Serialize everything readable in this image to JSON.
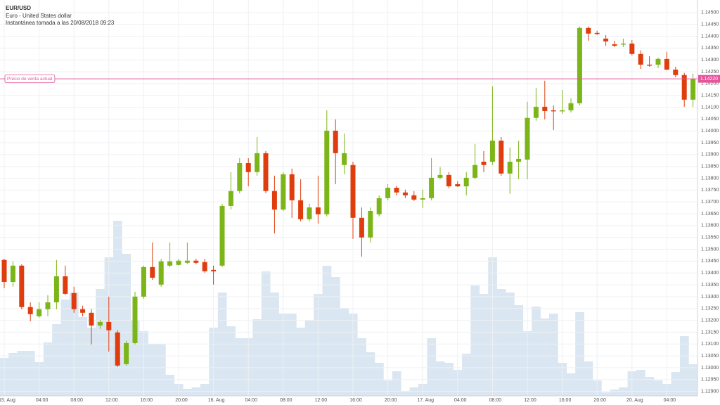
{
  "chart_data": {
    "type": "candlestick",
    "title": "EUR/USD",
    "subtitle": "Euro - United States dollar",
    "snapshot": "Instantánea tomada a las 20/08/2018 09:23",
    "annotation": "Precio de venta actual",
    "current_price": {
      "value": 1.1422,
      "label": "1.14220"
    },
    "up_color": "#7cb518",
    "down_color": "#df3d0e",
    "volume_color": "#dae6f1",
    "price_line_color": "#e4559c",
    "grid": true,
    "categories": [
      "15. Aug",
      null,
      null,
      null,
      "04:00",
      null,
      null,
      null,
      "08:00",
      null,
      null,
      null,
      "12:00",
      null,
      null,
      null,
      "16:00",
      null,
      null,
      null,
      "20:00",
      null,
      null,
      null,
      "16. Aug",
      null,
      null,
      null,
      "04:00",
      null,
      null,
      null,
      "08:00",
      null,
      null,
      null,
      "12:00",
      null,
      null,
      null,
      "16:00",
      null,
      null,
      null,
      "20:00",
      null,
      null,
      null,
      "17. Aug",
      null,
      null,
      null,
      "04:00",
      null,
      null,
      null,
      "08:00",
      null,
      null,
      null,
      "12:00",
      null,
      null,
      null,
      "16:00",
      null,
      null,
      null,
      "20:00",
      null,
      null,
      null,
      "20. Aug",
      null,
      null,
      null,
      "04:00",
      null,
      null,
      null
    ],
    "open": [
      1.13455,
      1.13362,
      1.13431,
      1.13256,
      1.13217,
      1.13247,
      1.13276,
      1.13386,
      1.13315,
      1.13247,
      1.13232,
      1.13178,
      1.13193,
      1.13149,
      1.13015,
      1.13104,
      1.133,
      1.13425,
      1.13351,
      1.13431,
      1.13434,
      1.13443,
      1.13452,
      1.13446,
      1.13413,
      1.13431,
      1.13683,
      1.13746,
      1.13864,
      1.13826,
      1.13906,
      1.13746,
      1.13668,
      1.13817,
      1.13707,
      1.13627,
      1.13677,
      1.13648,
      1.14001,
      1.13856,
      1.13856,
      1.13633,
      1.1355,
      1.13648,
      1.13716,
      1.1376,
      1.1374,
      1.13728,
      1.1371,
      1.13716,
      1.13802,
      1.13814,
      1.13775,
      1.13766,
      1.13802,
      1.1387,
      1.1387,
      1.13959,
      1.1382,
      1.1387,
      1.13879,
      1.14055,
      1.14102,
      1.14087,
      1.14084,
      1.14087,
      1.14117,
      1.14435,
      1.14414,
      1.1439,
      1.14366,
      1.14366,
      1.14369,
      1.14325,
      1.1428,
      1.1428,
      1.14304,
      1.14259,
      1.14236,
      1.14132
    ],
    "high": [
      1.1346,
      1.13449,
      1.13437,
      1.13276,
      1.13276,
      1.13306,
      1.13455,
      1.13431,
      1.13342,
      1.13262,
      1.13247,
      1.13202,
      1.133,
      1.13158,
      1.13113,
      1.13321,
      1.13431,
      1.13529,
      1.1346,
      1.13529,
      1.1346,
      1.13529,
      1.1346,
      1.1346,
      1.13431,
      1.13692,
      1.13826,
      1.13885,
      1.13885,
      1.13974,
      1.13915,
      1.13811,
      1.13826,
      1.13841,
      1.13796,
      1.13692,
      1.13811,
      1.14087,
      1.14049,
      1.13989,
      1.1387,
      1.13677,
      1.13677,
      1.13728,
      1.13775,
      1.13769,
      1.13752,
      1.13746,
      1.13752,
      1.13885,
      1.13847,
      1.13826,
      1.13787,
      1.13826,
      1.13945,
      1.13915,
      1.14188,
      1.13974,
      1.1393,
      1.13959,
      1.14123,
      1.14182,
      1.14212,
      1.14108,
      1.14173,
      1.14138,
      1.14441,
      1.14441,
      1.14423,
      1.14405,
      1.14381,
      1.1439,
      1.14384,
      1.1434,
      1.14316,
      1.1431,
      1.14334,
      1.14271,
      1.14245,
      1.14242
    ],
    "low": [
      1.13336,
      1.13342,
      1.13247,
      1.13196,
      1.13211,
      1.13217,
      1.13247,
      1.13306,
      1.13232,
      1.13217,
      1.13098,
      1.13164,
      1.13068,
      1.13003,
      1.13009,
      1.13098,
      1.13291,
      1.13371,
      1.13342,
      1.13425,
      1.13431,
      1.13437,
      1.13437,
      1.13401,
      1.13351,
      1.13425,
      1.13668,
      1.13737,
      1.13766,
      1.13811,
      1.13737,
      1.13567,
      1.13662,
      1.13633,
      1.13618,
      1.13618,
      1.13609,
      1.13639,
      1.13775,
      1.13817,
      1.13544,
      1.13469,
      1.13529,
      1.13639,
      1.13707,
      1.13728,
      1.13716,
      1.13704,
      1.13674,
      1.13707,
      1.13796,
      1.13758,
      1.13763,
      1.13728,
      1.13796,
      1.13826,
      1.13856,
      1.13811,
      1.13734,
      1.13796,
      1.13796,
      1.14043,
      1.14049,
      1.14004,
      1.14072,
      1.14078,
      1.14108,
      1.14381,
      1.14405,
      1.1436,
      1.14354,
      1.14354,
      1.14319,
      1.14262,
      1.14271,
      1.14265,
      1.14256,
      1.14227,
      1.14102,
      1.14102
    ],
    "close": [
      1.13362,
      1.13431,
      1.13256,
      1.13226,
      1.13247,
      1.13276,
      1.13386,
      1.13312,
      1.13247,
      1.13232,
      1.13178,
      1.13193,
      1.13158,
      1.13009,
      1.13104,
      1.133,
      1.13425,
      1.1338,
      1.13449,
      1.13449,
      1.13452,
      1.13452,
      1.13443,
      1.13407,
      1.13407,
      1.13683,
      1.13746,
      1.13864,
      1.13826,
      1.13906,
      1.13746,
      1.13668,
      1.13817,
      1.13707,
      1.13627,
      1.13677,
      1.13648,
      1.14001,
      1.13906,
      1.13906,
      1.13633,
      1.1355,
      1.13662,
      1.13716,
      1.1376,
      1.1374,
      1.13728,
      1.1371,
      1.13716,
      1.13802,
      1.13814,
      1.13766,
      1.13766,
      1.13802,
      1.13856,
      1.13856,
      1.13959,
      1.1382,
      1.1387,
      1.13882,
      1.14055,
      1.14102,
      1.14084,
      1.14084,
      1.14087,
      1.14117,
      1.14435,
      1.14411,
      1.14411,
      1.14378,
      1.1436,
      1.14369,
      1.14325,
      1.1428,
      1.14277,
      1.14304,
      1.14259,
      1.14236,
      1.14132,
      1.1422
    ],
    "volume": [
      54,
      61,
      64,
      64,
      48,
      76,
      102,
      137,
      147,
      112,
      97,
      152,
      197,
      249,
      202,
      107,
      92,
      74,
      74,
      30,
      17,
      10,
      12,
      17,
      97,
      147,
      99,
      82,
      82,
      109,
      177,
      147,
      117,
      117,
      97,
      107,
      145,
      185,
      169,
      125,
      117,
      82,
      62,
      47,
      22,
      35,
      7,
      12,
      17,
      82,
      49,
      47,
      37,
      60,
      157,
      145,
      197,
      152,
      147,
      129,
      92,
      127,
      110,
      117,
      47,
      32,
      119,
      49,
      22,
      5,
      9,
      12,
      35,
      37,
      27,
      22,
      17,
      34,
      85,
      45
    ],
    "ylim": [
      1.12881,
      1.14553
    ],
    "yticks": [
      {
        "value": 1.129,
        "label": "1.12900"
      },
      {
        "value": 1.1295,
        "label": "1.12950"
      },
      {
        "value": 1.13,
        "label": "1.13000"
      },
      {
        "value": 1.1305,
        "label": "1.13050"
      },
      {
        "value": 1.131,
        "label": "1.13100"
      },
      {
        "value": 1.1315,
        "label": "1.13150"
      },
      {
        "value": 1.132,
        "label": "1.13200"
      },
      {
        "value": 1.1325,
        "label": "1.13250"
      },
      {
        "value": 1.133,
        "label": "1.13300"
      },
      {
        "value": 1.1335,
        "label": "1.13350"
      },
      {
        "value": 1.134,
        "label": "1.13400"
      },
      {
        "value": 1.1345,
        "label": "1.13450"
      },
      {
        "value": 1.135,
        "label": "1.13500"
      },
      {
        "value": 1.1355,
        "label": "1.13550"
      },
      {
        "value": 1.136,
        "label": "1.13600"
      },
      {
        "value": 1.1365,
        "label": "1.13650"
      },
      {
        "value": 1.137,
        "label": "1.13700"
      },
      {
        "value": 1.1375,
        "label": "1.13750"
      },
      {
        "value": 1.138,
        "label": "1.13800"
      },
      {
        "value": 1.1385,
        "label": "1.13850"
      },
      {
        "value": 1.139,
        "label": "1.13900"
      },
      {
        "value": 1.1395,
        "label": "1.13950"
      },
      {
        "value": 1.14,
        "label": "1.14000"
      },
      {
        "value": 1.1405,
        "label": "1.14050"
      },
      {
        "value": 1.141,
        "label": "1.14100"
      },
      {
        "value": 1.1415,
        "label": "1.14150"
      },
      {
        "value": 1.142,
        "label": "1.14200"
      },
      {
        "value": 1.1425,
        "label": "1.14250"
      },
      {
        "value": 1.143,
        "label": "1.14300"
      },
      {
        "value": 1.1435,
        "label": "1.14350"
      },
      {
        "value": 1.144,
        "label": "1.14400"
      },
      {
        "value": 1.1445,
        "label": "1.14450"
      },
      {
        "value": 1.145,
        "label": "1.14500"
      }
    ]
  }
}
